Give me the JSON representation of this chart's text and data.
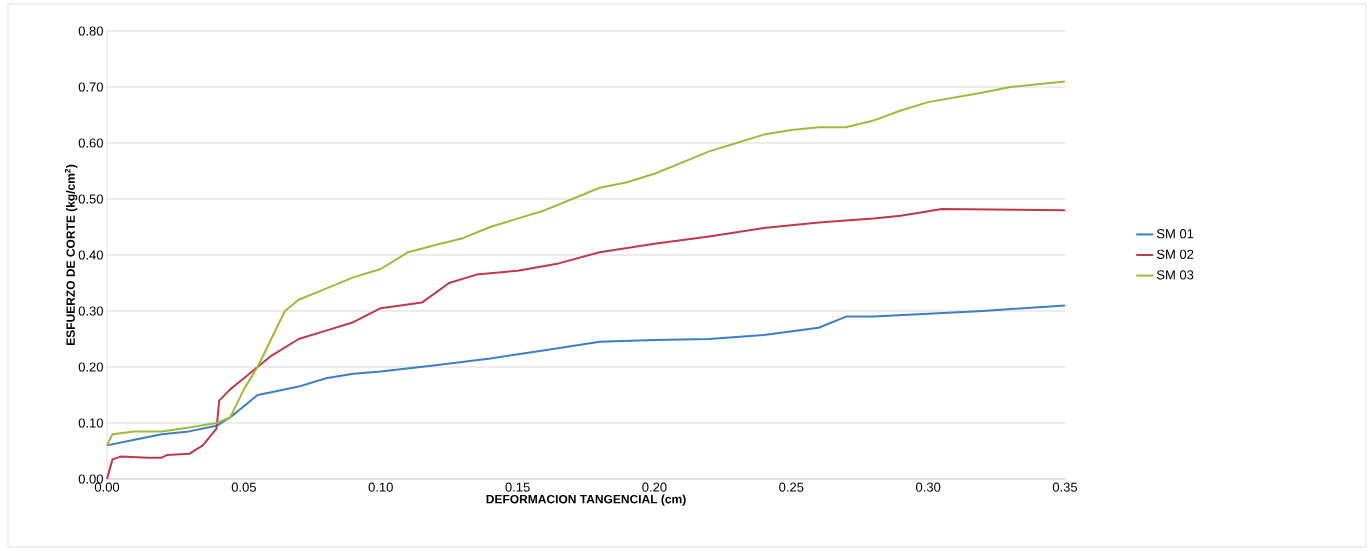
{
  "chart_data": {
    "type": "line",
    "xlabel": "DEFORMACION TANGENCIAL (cm)",
    "ylabel": "ESFUERZO DE CORTE (kg/cm$^{2}$)",
    "xlim": [
      0,
      0.35
    ],
    "ylim": [
      0,
      0.8
    ],
    "xticks": [
      {
        "value": 0,
        "label": "0.00"
      },
      {
        "value": 0.05,
        "label": "0.05"
      },
      {
        "value": 0.1,
        "label": "0.10"
      },
      {
        "value": 0.15,
        "label": "0.15"
      },
      {
        "value": 0.2,
        "label": "0.20"
      },
      {
        "value": 0.25,
        "label": "0.25"
      },
      {
        "value": 0.3,
        "label": "0.30"
      },
      {
        "value": 0.35,
        "label": "0.35"
      }
    ],
    "yticks": [
      {
        "value": 0,
        "label": "0.00"
      },
      {
        "value": 0.1,
        "label": "0.10"
      },
      {
        "value": 0.2,
        "label": "0.20"
      },
      {
        "value": 0.3,
        "label": "0.30"
      },
      {
        "value": 0.4,
        "label": "0.40"
      },
      {
        "value": 0.5,
        "label": "0.50"
      },
      {
        "value": 0.6,
        "label": "0.60"
      },
      {
        "value": 0.7,
        "label": "0.70"
      },
      {
        "value": 0.8,
        "label": "0.80"
      }
    ],
    "grid": "y",
    "legend": "right",
    "marker": "none",
    "line_style": "solid",
    "series": [
      {
        "name": "SM  01",
        "color": "#3b7fc4",
        "x": [
          0,
          0.01,
          0.02,
          0.03,
          0.04,
          0.045,
          0.05,
          0.055,
          0.06,
          0.07,
          0.08,
          0.09,
          0.1,
          0.12,
          0.14,
          0.16,
          0.18,
          0.2,
          0.22,
          0.24,
          0.26,
          0.27,
          0.28,
          0.3,
          0.32,
          0.35
        ],
        "values": [
          0.06,
          0.07,
          0.08,
          0.085,
          0.095,
          0.11,
          0.13,
          0.15,
          0.155,
          0.165,
          0.18,
          0.188,
          0.192,
          0.203,
          0.215,
          0.23,
          0.245,
          0.248,
          0.25,
          0.257,
          0.27,
          0.29,
          0.29,
          0.295,
          0.3,
          0.31
        ]
      },
      {
        "name": "SM  02",
        "color": "#c0394b",
        "x": [
          0,
          0.002,
          0.005,
          0.015,
          0.02,
          0.022,
          0.03,
          0.035,
          0.04,
          0.041,
          0.045,
          0.05,
          0.055,
          0.06,
          0.07,
          0.08,
          0.09,
          0.1,
          0.115,
          0.125,
          0.135,
          0.15,
          0.165,
          0.18,
          0.2,
          0.22,
          0.24,
          0.26,
          0.28,
          0.29,
          0.305,
          0.35
        ],
        "values": [
          0.0,
          0.035,
          0.04,
          0.038,
          0.038,
          0.043,
          0.045,
          0.06,
          0.09,
          0.14,
          0.16,
          0.18,
          0.2,
          0.22,
          0.25,
          0.265,
          0.28,
          0.305,
          0.315,
          0.35,
          0.365,
          0.372,
          0.385,
          0.405,
          0.42,
          0.433,
          0.448,
          0.458,
          0.465,
          0.47,
          0.482,
          0.48
        ]
      },
      {
        "name": "SM 03",
        "color": "#9bbb3b",
        "x": [
          0,
          0.002,
          0.01,
          0.02,
          0.03,
          0.04,
          0.045,
          0.05,
          0.055,
          0.06,
          0.065,
          0.07,
          0.08,
          0.09,
          0.1,
          0.11,
          0.12,
          0.13,
          0.14,
          0.15,
          0.16,
          0.17,
          0.18,
          0.19,
          0.2,
          0.21,
          0.22,
          0.23,
          0.24,
          0.25,
          0.26,
          0.27,
          0.28,
          0.29,
          0.3,
          0.32,
          0.33,
          0.34,
          0.35
        ],
        "values": [
          0.06,
          0.08,
          0.085,
          0.085,
          0.092,
          0.1,
          0.11,
          0.16,
          0.2,
          0.25,
          0.3,
          0.32,
          0.34,
          0.36,
          0.375,
          0.405,
          0.418,
          0.43,
          0.45,
          0.465,
          0.48,
          0.5,
          0.52,
          0.53,
          0.545,
          0.565,
          0.585,
          0.6,
          0.615,
          0.623,
          0.628,
          0.628,
          0.64,
          0.658,
          0.673,
          0.69,
          0.7,
          0.705,
          0.71
        ]
      }
    ]
  }
}
